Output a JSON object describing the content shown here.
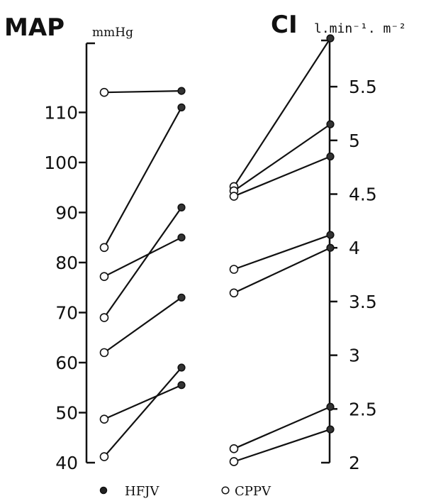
{
  "chart_data": {
    "type": "line",
    "legend": {
      "placement": "bottom",
      "entries": [
        {
          "marker": "filled-circle",
          "label": "HFJV"
        },
        {
          "marker": "open-circle",
          "label": "CPPV"
        }
      ]
    },
    "panels": [
      {
        "id": "map",
        "title": "MAP",
        "unit": "mmHg",
        "ylim": [
          40,
          118
        ],
        "yticks": [
          40,
          50,
          60,
          70,
          80,
          90,
          100,
          110
        ],
        "tick_labels": [
          "40",
          "50",
          "60",
          "70",
          "80",
          "90",
          "100",
          "110"
        ],
        "pairs": [
          {
            "CPPV": 114,
            "HFJV": 114.3
          },
          {
            "CPPV": 83,
            "HFJV": 111
          },
          {
            "CPPV": 77.2,
            "HFJV": 85
          },
          {
            "CPPV": 69,
            "HFJV": 91
          },
          {
            "CPPV": 62,
            "HFJV": 73
          },
          {
            "CPPV": 48.7,
            "HFJV": 55.5
          },
          {
            "CPPV": 41.2,
            "HFJV": 59
          }
        ]
      },
      {
        "id": "ci",
        "title": "CI",
        "unit": "l.min⁻¹. m⁻²",
        "ylim": [
          2,
          5.95
        ],
        "yticks": [
          2,
          2.5,
          3,
          3.5,
          4,
          4.5,
          5,
          5.5
        ],
        "tick_labels": [
          "2",
          "2.5",
          "3",
          "3.5",
          "4",
          "4.5",
          "5",
          "5.5"
        ],
        "pairs": [
          {
            "CPPV": 4.57,
            "HFJV": 5.95
          },
          {
            "CPPV": 4.53,
            "HFJV": 5.15
          },
          {
            "CPPV": 4.48,
            "HFJV": 4.85
          },
          {
            "CPPV": 3.8,
            "HFJV": 4.12
          },
          {
            "CPPV": 3.58,
            "HFJV": 4
          },
          {
            "CPPV": 2.13,
            "HFJV": 2.52
          },
          {
            "CPPV": 2.01,
            "HFJV": 2.31
          }
        ]
      }
    ]
  }
}
